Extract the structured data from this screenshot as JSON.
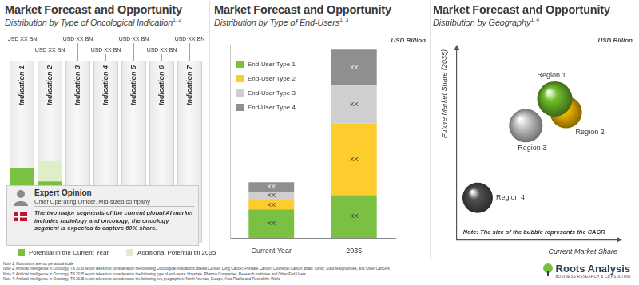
{
  "chart_data": [
    {
      "type": "bar",
      "title": "Market Forecast and Opportunity",
      "subtitle": "Distribution by Type of Oncological Indication",
      "subtitle_refs": "1, 2",
      "categories": [
        "Indication 1",
        "Indication 2",
        "Indication 3",
        "Indication 4",
        "Indication 5",
        "Indication 6",
        "Indication 7"
      ],
      "series": [
        {
          "name": "Potential in the Current Year",
          "color": "#7ac143",
          "values": [
            41,
            34,
            null,
            null,
            null,
            null,
            null
          ]
        },
        {
          "name": "Additional Potential till 2035",
          "color": "#dcefc9",
          "values": [
            null,
            11,
            null,
            null,
            null,
            null,
            null
          ]
        }
      ],
      "value_labels": [
        "USD XX BN",
        "USD XX BN",
        "USD XX BN",
        "USD XX BN",
        "USD XX BN",
        "USD XX BN",
        "USD XX BN"
      ],
      "stacked": true,
      "ylim": [
        0,
        100
      ],
      "tick_labels": false,
      "grid": false,
      "legend": "bottom",
      "expert_opinion": {
        "heading": "Expert Opinion",
        "role": "Chief Operating Officer, Mid-sized company",
        "quote": "The two major segments of the current global AI market includes radiology and oncology; the oncology segment is expected to capture 60% share."
      }
    },
    {
      "type": "bar",
      "title": "Market Forecast and Opportunity",
      "subtitle": "Distribution by Type of End-Users",
      "subtitle_refs": "1, 3",
      "unit_label": "USD Billion",
      "categories": [
        "Current Year",
        "2035"
      ],
      "series": [
        {
          "name": "End-User Type 1",
          "color": "#7ac143",
          "values": [
            40,
            60
          ],
          "value_labels": [
            "XX",
            "XX"
          ]
        },
        {
          "name": "End-User Type 2",
          "color": "#ffcc2e",
          "values": [
            13,
            100
          ],
          "value_labels": [
            "XX",
            "XX"
          ]
        },
        {
          "name": "End-User Type 3",
          "color": "#cfcfcf",
          "values": [
            12,
            53
          ],
          "value_labels": [
            "XX",
            "XX"
          ]
        },
        {
          "name": "End-User Type 4",
          "color": "#8f8f8f",
          "values": [
            13,
            50
          ],
          "value_labels": [
            "XX",
            "XX"
          ]
        }
      ],
      "stacked": true,
      "ylim": [
        0,
        270
      ],
      "tick_labels": "x",
      "grid": false,
      "legend": "upper left",
      "data_labels": true
    },
    {
      "type": "bubble",
      "title": "Market Forecast and Opportunity",
      "subtitle": "Distribution by Geography",
      "subtitle_refs": "1, 4",
      "unit_label": "USD Billion",
      "xlabel": "Current Market Share",
      "ylabel": "Future Market Share (2035)",
      "categories": [
        "Region 1",
        "Region 2",
        "Region 3",
        "Region 4"
      ],
      "x": [
        61,
        68,
        43,
        13
      ],
      "values": [
        74,
        67,
        60,
        22
      ],
      "sizes": [
        22,
        20,
        21,
        19
      ],
      "colors": [
        "#6fbf2a",
        "#f5b800",
        "#c9c9c9",
        "#505050"
      ],
      "xlim": [
        0,
        100
      ],
      "ylim": [
        0,
        100
      ],
      "tick_labels": false,
      "grid": false,
      "annotations": [
        "Note: The size of the bubble represents the CAGR"
      ]
    }
  ],
  "notes": [
    "Note 1: Illustrations are not per actual scale",
    "Note 2: Artificial Intelligence in Oncology, Till 2035 report takes into consideration the following Oncological Indications: Breast Cancer, Lung Cancer, Prostate Cancer, Colorectal Cancer, Brain Tumor, Solid Malignancies, and Other Cancers",
    "Note 3: Artificial Intelligence in Oncology, Till 2035 report takes into consideration the following type of end-users: Hospitals, Pharma Companies, Research Institutes and Other End-Users",
    "Note 4: Artificial Intelligence in Oncology, Till 2035 report takes into consideration the following key geographies: North America, Europe, Asia-Pacific and Rest of the World"
  ],
  "brand": {
    "name": "Roots Analysis",
    "tagline": "BUSINESS RESEARCH & CONSULTING"
  }
}
